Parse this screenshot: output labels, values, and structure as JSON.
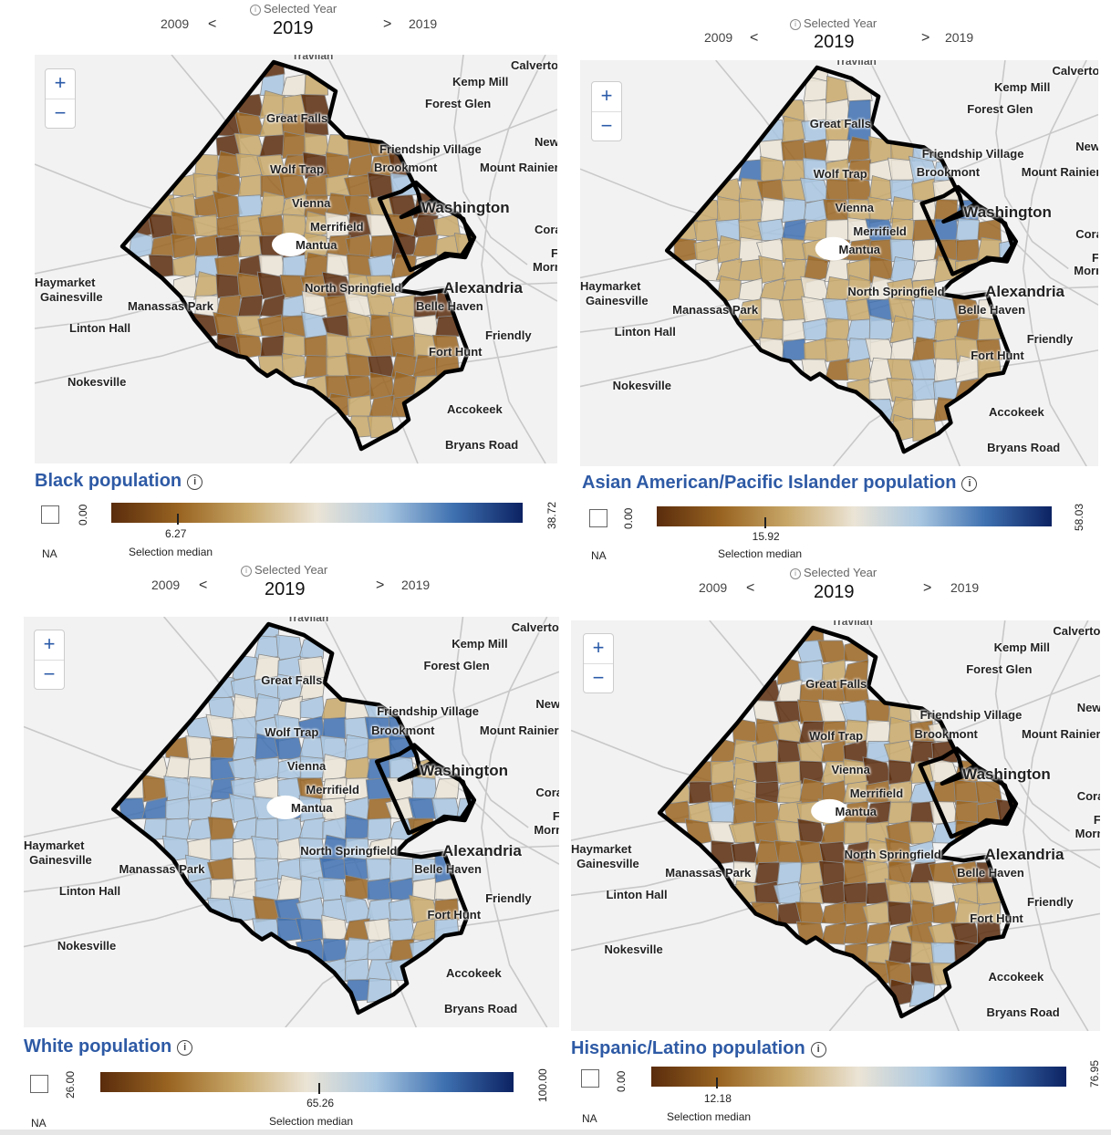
{
  "colors": {
    "scale": [
      "#5a2c0c",
      "#9a6522",
      "#c8a86a",
      "#ebe4d6",
      "#a8c6e0",
      "#3e70b0",
      "#0c2262"
    ],
    "title": "#2e5aa5",
    "boundary": "#000000"
  },
  "panels": [
    {
      "year_min": "2009",
      "prev": "<",
      "next": ">",
      "year_max": "2019",
      "selected_label": "Selected Year",
      "selected_year": "2019",
      "zoom_in": "+",
      "zoom_out": "−",
      "title": "Black population",
      "legend_min": "0.00",
      "legend_max": "38.72",
      "median_value": "6.27",
      "median_fraction": 0.162,
      "median_label": "Selection median",
      "na_label": "NA",
      "palette_bias": "brown"
    },
    {
      "year_min": "2009",
      "prev": "<",
      "next": ">",
      "year_max": "2019",
      "selected_label": "Selected Year",
      "selected_year": "2019",
      "zoom_in": "+",
      "zoom_out": "−",
      "title": "Asian American/Pacific Islander population",
      "legend_min": "0.00",
      "legend_max": "58.03",
      "median_value": "15.92",
      "median_fraction": 0.274,
      "median_label": "Selection median",
      "na_label": "NA",
      "palette_bias": "mixed"
    },
    {
      "year_min": "2009",
      "prev": "<",
      "next": ">",
      "year_max": "2019",
      "selected_label": "Selected Year",
      "selected_year": "2019",
      "zoom_in": "+",
      "zoom_out": "−",
      "title": "White population",
      "legend_min": "26.00",
      "legend_max": "100.00",
      "median_value": "65.26",
      "median_fraction": 0.53,
      "median_label": "Selection median",
      "na_label": "NA",
      "palette_bias": "blue"
    },
    {
      "year_min": "2009",
      "prev": "<",
      "next": ">",
      "year_max": "2019",
      "selected_label": "Selected Year",
      "selected_year": "2019",
      "zoom_in": "+",
      "zoom_out": "−",
      "title": "Hispanic/Latino population",
      "legend_min": "0.00",
      "legend_max": "76.95",
      "median_value": "12.18",
      "median_fraction": 0.158,
      "median_label": "Selection median",
      "na_label": "NA",
      "palette_bias": "brown"
    }
  ],
  "places": [
    "Travilah",
    "Kemp Mill",
    "Calverton",
    "Forest Glen",
    "Great Falls",
    "Friendship Village",
    "New C",
    "Wolf Trap",
    "Brookmont",
    "Mount Rainier",
    "Vienna",
    "Washington",
    "Merrifield",
    "Coral Hills",
    "Mantua",
    "Forestville",
    "Morningside",
    "Haymarket",
    "Gainesville",
    "North Springfield",
    "Alexandria",
    "Manassas Park",
    "Belle Haven",
    "Linton Hall",
    "Friendly",
    "Fort Hunt",
    "Nokesville",
    "Accokeek",
    "Bryans Road"
  ]
}
